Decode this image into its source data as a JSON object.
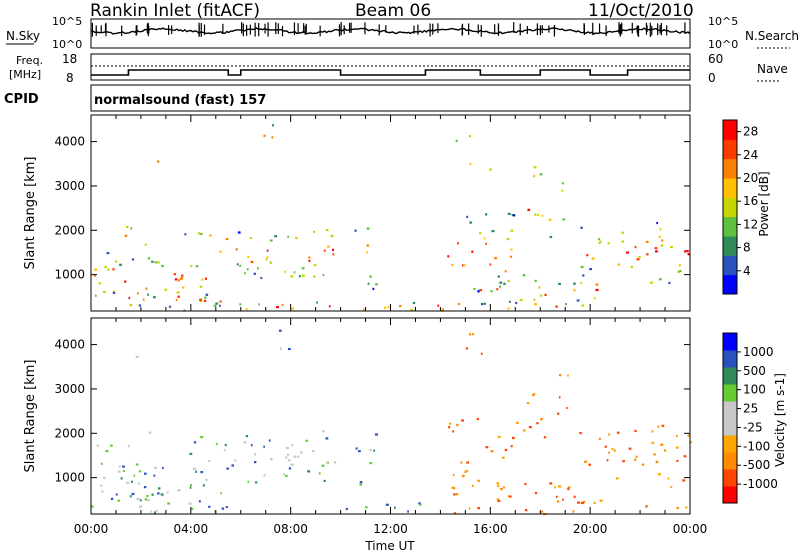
{
  "header": {
    "station": "Rankin Inlet (fitACF)",
    "beam": "Beam 06",
    "date": "11/Oct/2010"
  },
  "strips": {
    "nsky_label": "N.Sky",
    "nsky_ticks": [
      "10^5",
      "10^0"
    ],
    "nsearch_label": "N.Search",
    "freq_label_line1": "Freq.",
    "freq_label_line2": "[MHz]",
    "freq_ticks": [
      "18",
      "8"
    ],
    "nave_label": "Nave",
    "nave_ticks": [
      "60",
      "0"
    ],
    "cpid_label": "CPID",
    "cpid_value": "normalsound (fast) 157"
  },
  "colors": {
    "power_scale": [
      "#0000ff",
      "#2a52be",
      "#2e8b57",
      "#5fbf3f",
      "#c8d400",
      "#ffc000",
      "#ff8000",
      "#ff3c00",
      "#ff0000"
    ],
    "velocity_scale": [
      "#ff0000",
      "#ff4500",
      "#ff8c00",
      "#ffa500",
      "#c8c8c8",
      "#c8c8c8",
      "#66cc33",
      "#2e8b57",
      "#2a52be",
      "#0000ff"
    ]
  },
  "chart_data": [
    {
      "type": "heatmap",
      "title": "Power",
      "xlabel": "Time UT",
      "ylabel": "Slant Range [km]",
      "x_ticks": [
        "00:00",
        "04:00",
        "08:00",
        "12:00",
        "16:00",
        "20:00",
        "00:00"
      ],
      "y_ticks": [
        1000,
        2000,
        3000,
        4000
      ],
      "ylim": [
        180,
        4600
      ],
      "colorbar_label": "Power [dB]",
      "colorbar_ticks": [
        4,
        8,
        12,
        16,
        20,
        24,
        28
      ],
      "colorbar_range": [
        0,
        30
      ]
    },
    {
      "type": "heatmap",
      "title": "Velocity",
      "xlabel": "Time UT",
      "ylabel": "Slant Range [km]",
      "x_ticks": [
        "00:00",
        "04:00",
        "08:00",
        "12:00",
        "16:00",
        "20:00",
        "00:00"
      ],
      "y_ticks": [
        1000,
        2000,
        3000,
        4000
      ],
      "ylim": [
        180,
        4600
      ],
      "colorbar_label": "Velocity [m s-1]",
      "colorbar_ticks": [
        1000,
        500,
        100,
        25,
        -25,
        -100,
        -500,
        -1000
      ]
    }
  ]
}
